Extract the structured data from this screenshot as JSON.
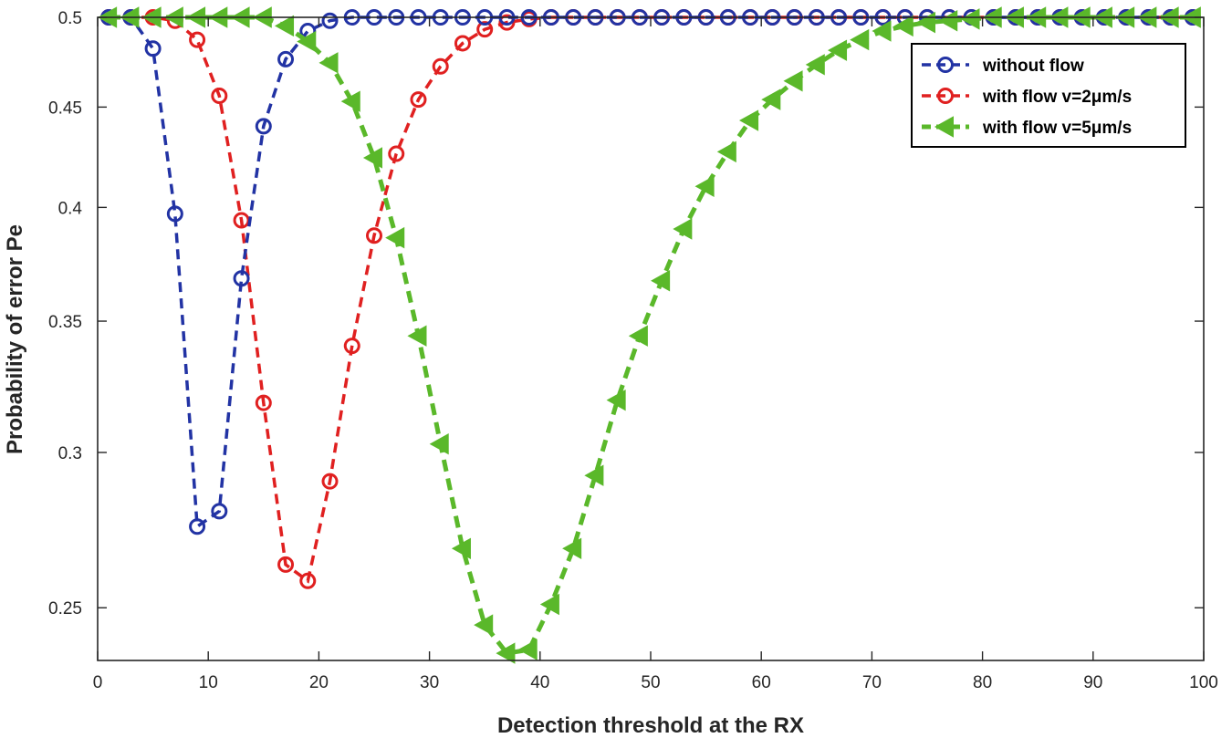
{
  "chart_data": {
    "type": "line",
    "title": "",
    "xlabel": "Detection threshold at the RX",
    "ylabel": "Probability of error Pe",
    "xlim": [
      0,
      100
    ],
    "ylim": [
      0.235,
      0.5
    ],
    "y_scale": "log",
    "x_ticks": [
      0,
      10,
      20,
      30,
      40,
      50,
      60,
      70,
      80,
      90,
      100
    ],
    "x_tick_labels": [
      "0",
      "10",
      "20",
      "30",
      "40",
      "50",
      "60",
      "70",
      "80",
      "90",
      "100"
    ],
    "y_ticks": [
      0.25,
      0.3,
      0.35,
      0.4,
      0.45,
      0.5
    ],
    "y_tick_labels": [
      "0.25",
      "0.3",
      "0.35",
      "0.4",
      "0.45",
      "0.5"
    ],
    "grid": false,
    "legend_position": "top-right",
    "x": [
      1,
      3,
      5,
      7,
      9,
      11,
      13,
      15,
      17,
      19,
      21,
      23,
      25,
      27,
      29,
      31,
      33,
      35,
      37,
      39,
      41,
      43,
      45,
      47,
      49,
      51,
      53,
      55,
      57,
      59,
      61,
      63,
      65,
      67,
      69,
      71,
      73,
      75,
      77,
      79,
      81,
      83,
      85,
      87,
      89,
      91,
      93,
      95,
      97,
      99
    ],
    "series": [
      {
        "name": "without flow",
        "color": "#2233a4",
        "marker": "circle",
        "line_style": "dashed",
        "values": [
          0.5,
          0.5,
          0.482,
          0.397,
          0.275,
          0.28,
          0.368,
          0.44,
          0.476,
          0.492,
          0.498,
          0.5,
          0.5,
          0.5,
          0.5,
          0.5,
          0.5,
          0.5,
          0.5,
          0.5,
          0.5,
          0.5,
          0.5,
          0.5,
          0.5,
          0.5,
          0.5,
          0.5,
          0.5,
          0.5,
          0.5,
          0.5,
          0.5,
          0.5,
          0.5,
          0.5,
          0.5,
          0.5,
          0.5,
          0.5,
          0.5,
          0.5,
          0.5,
          0.5,
          0.5,
          0.5,
          0.5,
          0.5,
          0.5,
          0.5
        ]
      },
      {
        "name": "with flow v=2μm/s",
        "color": "#e02020",
        "marker": "circle",
        "line_style": "dashed",
        "values": [
          0.5,
          0.5,
          0.5,
          0.498,
          0.487,
          0.456,
          0.394,
          0.318,
          0.263,
          0.258,
          0.29,
          0.34,
          0.387,
          0.426,
          0.454,
          0.472,
          0.485,
          0.493,
          0.497,
          0.499,
          0.5,
          0.5,
          0.5,
          0.5,
          0.5,
          0.5,
          0.5,
          0.5,
          0.5,
          0.5,
          0.5,
          0.5,
          0.5,
          0.5,
          0.5,
          0.5,
          0.5,
          0.5,
          0.5,
          0.5,
          0.5,
          0.5,
          0.5,
          0.5,
          0.5,
          0.5,
          0.5,
          0.5,
          0.5,
          0.5
        ]
      },
      {
        "name": "with flow v=5μm/s",
        "color": "#5ab82a",
        "marker": "triangle-left",
        "line_style": "dashed",
        "values": [
          0.5,
          0.5,
          0.5,
          0.5,
          0.5,
          0.5,
          0.5,
          0.5,
          0.495,
          0.486,
          0.474,
          0.453,
          0.424,
          0.386,
          0.344,
          0.303,
          0.268,
          0.245,
          0.237,
          0.238,
          0.251,
          0.268,
          0.292,
          0.319,
          0.344,
          0.367,
          0.39,
          0.41,
          0.427,
          0.443,
          0.454,
          0.464,
          0.473,
          0.481,
          0.487,
          0.492,
          0.495,
          0.497,
          0.498,
          0.499,
          0.5,
          0.5,
          0.5,
          0.5,
          0.5,
          0.5,
          0.5,
          0.5,
          0.5,
          0.5
        ]
      }
    ]
  }
}
